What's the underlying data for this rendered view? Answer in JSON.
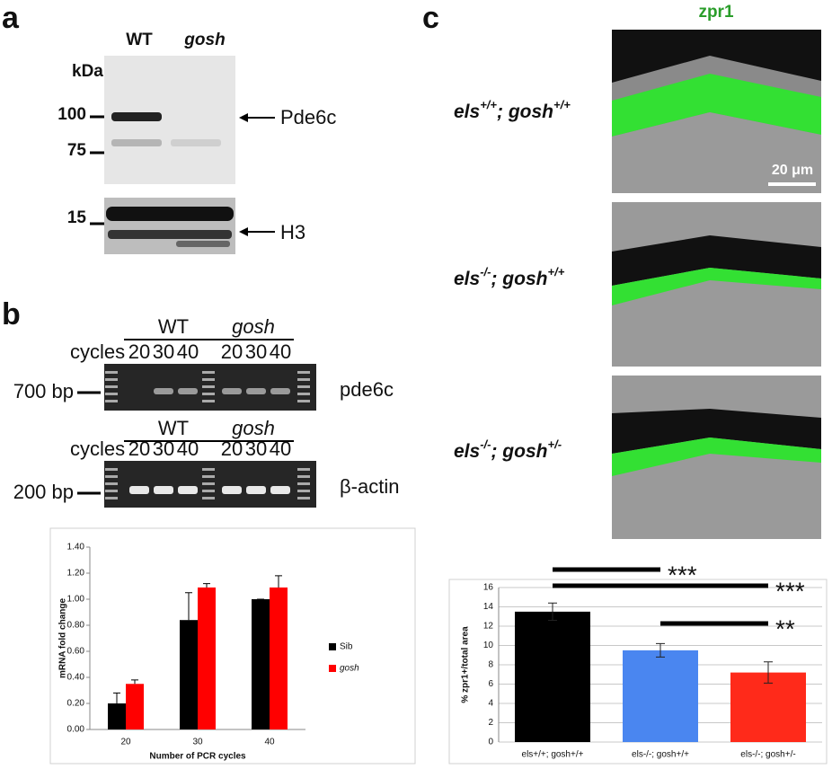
{
  "panel_a": {
    "label": "a",
    "lanes": [
      "WT",
      "gosh"
    ],
    "unit": "kDa",
    "markers": [
      "100",
      "75",
      "15"
    ],
    "bands": [
      "Pde6c",
      "H3"
    ]
  },
  "panel_b": {
    "label": "b",
    "gels": [
      {
        "groups": [
          "WT",
          "gosh"
        ],
        "cycles_label": "cycles",
        "cycles": [
          "20",
          "30",
          "40",
          "20",
          "30",
          "40"
        ],
        "marker": "700 bp",
        "gene": "pde6c"
      },
      {
        "groups": [
          "WT",
          "gosh"
        ],
        "cycles_label": "cycles",
        "cycles": [
          "20",
          "30",
          "40",
          "20",
          "30",
          "40"
        ],
        "marker": "200 bp",
        "gene": "β-actin"
      }
    ]
  },
  "panel_c": {
    "label": "c",
    "stain": "zpr1",
    "scale": "20 μm",
    "genotypes": [
      [
        "els",
        "+/+",
        "; gosh",
        "+/+"
      ],
      [
        "els",
        "-/-",
        "; gosh",
        "+/+"
      ],
      [
        "els",
        "-/-",
        "; gosh",
        "+/-"
      ]
    ]
  },
  "chart_data": [
    {
      "type": "grouped_bar",
      "categories": [
        "20",
        "30",
        "40"
      ],
      "series": [
        {
          "name": "Sib",
          "color": "#000000",
          "values": [
            0.2,
            0.84,
            1.0
          ],
          "errors": [
            0.08,
            0.21,
            0
          ]
        },
        {
          "name": "gosh",
          "color": "#ff0000",
          "values": [
            0.35,
            1.09,
            1.09
          ],
          "errors": [
            0.03,
            0.03,
            0.09
          ]
        }
      ],
      "xlabel": "Number of PCR cycles",
      "ylabel": "mRNA fold change",
      "ylim": [
        0,
        1.4
      ],
      "yticks": [
        {
          "value": 0,
          "label": "0.00"
        },
        {
          "value": 0.2,
          "label": "0.20"
        },
        {
          "value": 0.4,
          "label": "0.40"
        },
        {
          "value": 0.6,
          "label": "0.60"
        },
        {
          "value": 0.8,
          "label": "0.80"
        },
        {
          "value": 1.0,
          "label": "1.00"
        },
        {
          "value": 1.2,
          "label": "1.20"
        },
        {
          "value": 1.4,
          "label": "1.40"
        }
      ],
      "legend": "right",
      "grid": false
    },
    {
      "type": "bar",
      "categories": [
        "els+/+; gosh+/+",
        "els-/-; gosh+/+",
        "els-/-; gosh+/-"
      ],
      "values": [
        13.5,
        9.5,
        7.2
      ],
      "errors": [
        0.9,
        0.7,
        1.1
      ],
      "colors": [
        "#000000",
        "#4a86f0",
        "#ff2a1a"
      ],
      "ylabel": "% zpr1+/total area",
      "ylim": [
        0,
        16
      ],
      "yticks": [
        0,
        2,
        4,
        6,
        8,
        10,
        12,
        14,
        16
      ],
      "grid": true,
      "annotations": [
        {
          "text": "***",
          "from": 0,
          "to": 1
        },
        {
          "text": "***",
          "from": 0,
          "to": 2
        },
        {
          "text": "**",
          "from": 1,
          "to": 2
        }
      ]
    }
  ]
}
